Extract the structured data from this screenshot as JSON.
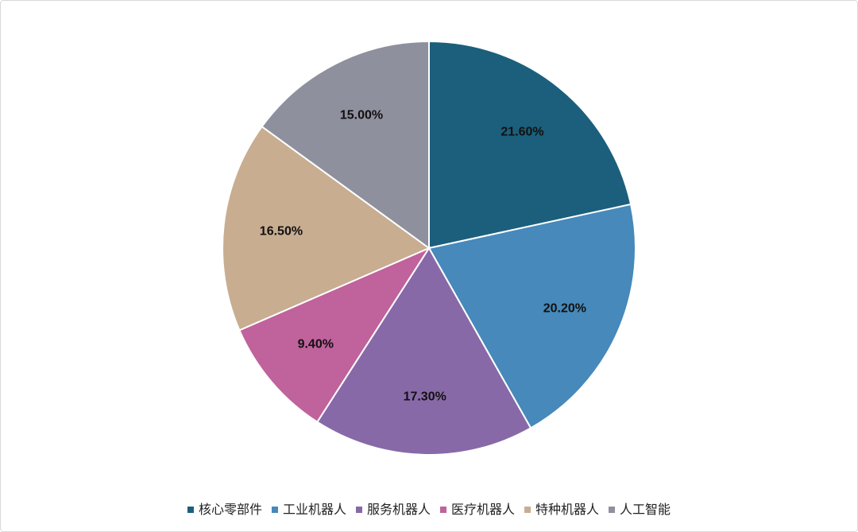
{
  "chart_data": {
    "type": "pie",
    "categories": [
      "核心零部件",
      "工业机器人",
      "服务机器人",
      "医疗机器人",
      "特种机器人",
      "人工智能"
    ],
    "values": [
      21.6,
      20.2,
      17.3,
      9.4,
      16.5,
      15.0
    ],
    "value_labels": [
      "21.60%",
      "20.20%",
      "17.30%",
      "9.40%",
      "16.50%",
      "15.00%"
    ],
    "colors": [
      "#1b5f7c",
      "#4689ba",
      "#8869a8",
      "#c0629c",
      "#c8ad91",
      "#8f909e"
    ],
    "legend": "bottom"
  }
}
